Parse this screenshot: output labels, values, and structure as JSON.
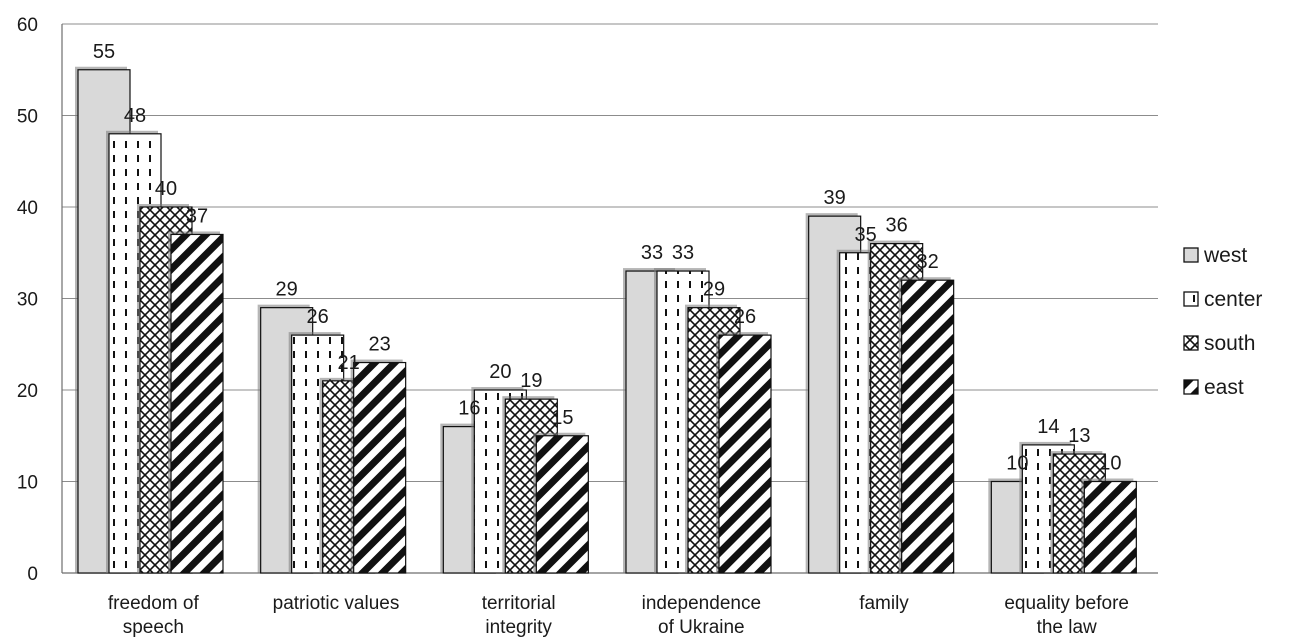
{
  "chart_data": {
    "type": "bar",
    "title": "",
    "xlabel": "",
    "ylabel": "",
    "ylim": [
      0,
      60
    ],
    "yticks": [
      0,
      10,
      20,
      30,
      40,
      50,
      60
    ],
    "grid": true,
    "legend_position": "right",
    "categories": [
      [
        "freedom of",
        "speech"
      ],
      [
        "patriotic values"
      ],
      [
        "territorial",
        "integrity"
      ],
      [
        "independence",
        "of Ukraine"
      ],
      [
        "family"
      ],
      [
        "equality before",
        "the law"
      ]
    ],
    "series": [
      {
        "name": "west",
        "pattern": "solid-gray",
        "values": [
          55,
          29,
          16,
          33,
          39,
          10
        ]
      },
      {
        "name": "center",
        "pattern": "dashes",
        "values": [
          48,
          26,
          20,
          33,
          35,
          14
        ]
      },
      {
        "name": "south",
        "pattern": "crosshatch",
        "values": [
          40,
          21,
          19,
          29,
          36,
          13
        ]
      },
      {
        "name": "east",
        "pattern": "diagonal",
        "values": [
          37,
          23,
          15,
          26,
          32,
          10
        ]
      }
    ],
    "colors": {
      "grid": "#8c8c8c",
      "axis": "#6e6e6e",
      "bar_stroke": "#111111",
      "west_fill": "#d9d9d9",
      "shadow": "#7a7a7a"
    }
  }
}
